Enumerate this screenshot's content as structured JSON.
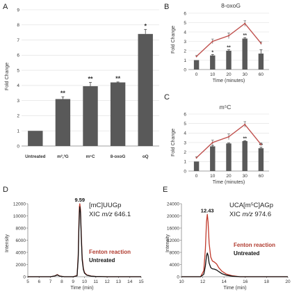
{
  "chart_data": [
    {
      "panel": "A",
      "type": "bar",
      "title": "",
      "xlabel": "",
      "ylabel": "Fold Change",
      "ylim": [
        0,
        9
      ],
      "yticks": [
        0,
        1,
        2,
        3,
        4,
        5,
        6,
        7,
        8,
        9
      ],
      "categories": [
        "Untreated",
        "m²,²G",
        "m⁵C",
        "8-oxoG",
        "oQ"
      ],
      "values": [
        1.0,
        3.1,
        3.95,
        4.2,
        7.4
      ],
      "errors": [
        0,
        0.15,
        0.25,
        0.03,
        0.3
      ],
      "annotations": [
        "",
        "**",
        "**",
        "**",
        "*"
      ],
      "grid": true,
      "bar_color": "#595959"
    },
    {
      "panel": "B",
      "type": "bar",
      "title": "8-oxoG",
      "xlabel": "Time (minutes)",
      "ylabel": "Fold Change",
      "ylim": [
        0,
        6
      ],
      "yticks": [
        0,
        1,
        2,
        3,
        4,
        5,
        6
      ],
      "categories": [
        "0",
        "10",
        "20",
        "30",
        "60"
      ],
      "values": [
        1.0,
        1.5,
        2.0,
        3.3,
        1.7
      ],
      "errors": [
        0,
        0.1,
        0.1,
        0.1,
        0.4
      ],
      "line_values": [
        1.4,
        3.0,
        3.6,
        4.9,
        2.8
      ],
      "line_errors": [
        0.1,
        0.25,
        0.3,
        0.3,
        0.15
      ],
      "annotations": [
        "",
        "*",
        "**",
        "**",
        ""
      ],
      "grid": true,
      "bar_color": "#595959",
      "line_color": "#c0504d"
    },
    {
      "panel": "C",
      "type": "bar",
      "title": "m⁵C",
      "xlabel": "Time (minutes)",
      "ylabel": "Fold Change",
      "ylim": [
        0,
        6
      ],
      "yticks": [
        0,
        1,
        2,
        3,
        4,
        5,
        6
      ],
      "categories": [
        "0",
        "10",
        "20",
        "30",
        "60"
      ],
      "values": [
        1.0,
        2.6,
        2.9,
        3.15,
        2.4
      ],
      "errors": [
        0,
        0.1,
        0.05,
        0.05,
        0.1
      ],
      "line_values": [
        1.4,
        3.0,
        3.6,
        4.9,
        2.8
      ],
      "line_errors": [
        0.1,
        0.25,
        0.3,
        0.3,
        0.15
      ],
      "annotations": [
        "",
        "",
        "",
        "**",
        "**"
      ],
      "grid": true,
      "bar_color": "#595959",
      "line_color": "#c0504d"
    },
    {
      "panel": "D",
      "type": "line",
      "title": "",
      "xlabel": "Time (min)",
      "ylabel": "Intensity",
      "xlim": [
        5,
        15
      ],
      "xticks": [
        5,
        6,
        7,
        8,
        9,
        10,
        11,
        12,
        13,
        14,
        15
      ],
      "ylim": [
        0,
        12000
      ],
      "yticks": [
        0,
        2000,
        4000,
        6000,
        8000,
        10000,
        12000
      ],
      "peak_label": "9.59",
      "annotation_line1": "[mC]UUGp",
      "annotation_line2_prefix": "XIC ",
      "annotation_line2_mz": "m/z",
      "annotation_line2_value": " 646.1",
      "legend": [
        "Fenton reaction",
        "Untreated"
      ],
      "series": [
        {
          "name": "Fenton reaction",
          "color": "#c0392b",
          "x": [
            5,
            7.0,
            7.4,
            7.6,
            7.8,
            8.2,
            9.0,
            9.35,
            9.45,
            9.5,
            9.55,
            9.59,
            9.65,
            9.72,
            9.8,
            9.9,
            10.0,
            10.2,
            10.6,
            11.0,
            12.0,
            15
          ],
          "y": [
            0,
            0,
            150,
            350,
            120,
            0,
            0,
            200,
            3500,
            8500,
            11500,
            12000,
            11000,
            7000,
            3200,
            1400,
            700,
            300,
            100,
            40,
            0,
            0
          ]
        },
        {
          "name": "Untreated",
          "color": "#111111",
          "x": [
            5,
            7.0,
            7.4,
            7.6,
            7.8,
            8.2,
            9.0,
            9.35,
            9.45,
            9.5,
            9.55,
            9.59,
            9.65,
            9.72,
            9.8,
            9.9,
            10.0,
            10.2,
            10.6,
            11.0,
            12.0,
            15
          ],
          "y": [
            0,
            0,
            120,
            300,
            100,
            0,
            0,
            150,
            3000,
            7500,
            10500,
            11500,
            10500,
            6500,
            2800,
            1200,
            600,
            250,
            80,
            30,
            0,
            0
          ]
        }
      ]
    },
    {
      "panel": "E",
      "type": "line",
      "title": "",
      "xlabel": "Time (min)",
      "ylabel": "Intensity",
      "xlim": [
        10,
        20
      ],
      "xticks": [
        10,
        12,
        14,
        16,
        18,
        20
      ],
      "ylim": [
        0,
        24000
      ],
      "yticks": [
        0,
        4000,
        8000,
        12000,
        16000,
        20000,
        24000
      ],
      "peak_label": "12.43",
      "annotation_line1": "UCA[m⁵C]AGp",
      "annotation_line2_prefix": "XIC ",
      "annotation_line2_mz": "m/z",
      "annotation_line2_value": " 974.6",
      "legend": [
        "Fenton reaction",
        "Untreated"
      ],
      "series": [
        {
          "name": "Fenton reaction",
          "color": "#c0392b",
          "x": [
            10,
            11.8,
            12.1,
            12.25,
            12.35,
            12.43,
            12.5,
            12.6,
            12.75,
            12.9,
            13.1,
            13.3,
            13.5,
            13.8,
            14.2,
            14.8,
            15.5,
            20
          ],
          "y": [
            0,
            0,
            2000,
            9000,
            18000,
            20500,
            18000,
            11000,
            6500,
            5200,
            4800,
            4200,
            3000,
            1800,
            900,
            300,
            0,
            0
          ]
        },
        {
          "name": "Untreated",
          "color": "#111111",
          "x": [
            10,
            11.8,
            12.1,
            12.25,
            12.35,
            12.43,
            12.5,
            12.6,
            12.75,
            12.9,
            13.1,
            13.3,
            13.5,
            13.8,
            14.2,
            14.8,
            15.5,
            20
          ],
          "y": [
            0,
            0,
            800,
            3500,
            6800,
            7800,
            7000,
            4500,
            3000,
            2600,
            2500,
            2200,
            1700,
            1000,
            500,
            150,
            0,
            0
          ]
        }
      ]
    }
  ]
}
